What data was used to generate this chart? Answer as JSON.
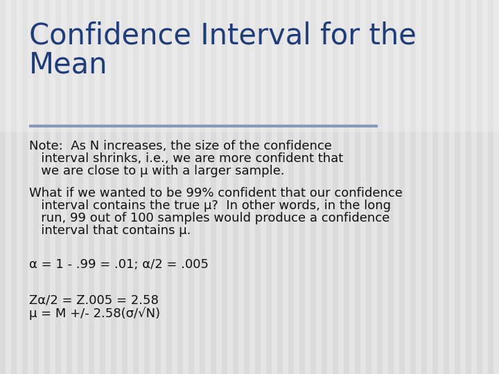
{
  "title_line1": "Confidence Interval for the",
  "title_line2": "Mean",
  "title_color": "#1F3D7A",
  "background_color": "#E8E8E8",
  "title_bg_color": "#EBEBEB",
  "body_bg_color": "#E0E0E0",
  "stripe_color_light": "#DCDCDC",
  "stripe_color_dark": "#D0D0D0",
  "divider_color": "#8899BB",
  "body_color": "#111111",
  "title_fontsize": 30,
  "body_fontsize": 13,
  "note_line1": "Note:  As N increases, the size of the confidence",
  "note_line2": "   interval shrinks, i.e., we are more confident that",
  "note_line3": "   we are close to μ with a larger sample.",
  "what_line1": "What if we wanted to be 99% confident that our confidence",
  "what_line2": "   interval contains the true μ?  In other words, in the long",
  "what_line3": "   run, 99 out of 100 samples would produce a confidence",
  "what_line4": "   interval that contains μ.",
  "alpha_text": "α = 1 - .99 = .01; α/2 = .005",
  "z_line1": "Zα/2 = Z.005 = 2.58",
  "z_line2": "μ = M +/- 2.58(σ/√N)"
}
